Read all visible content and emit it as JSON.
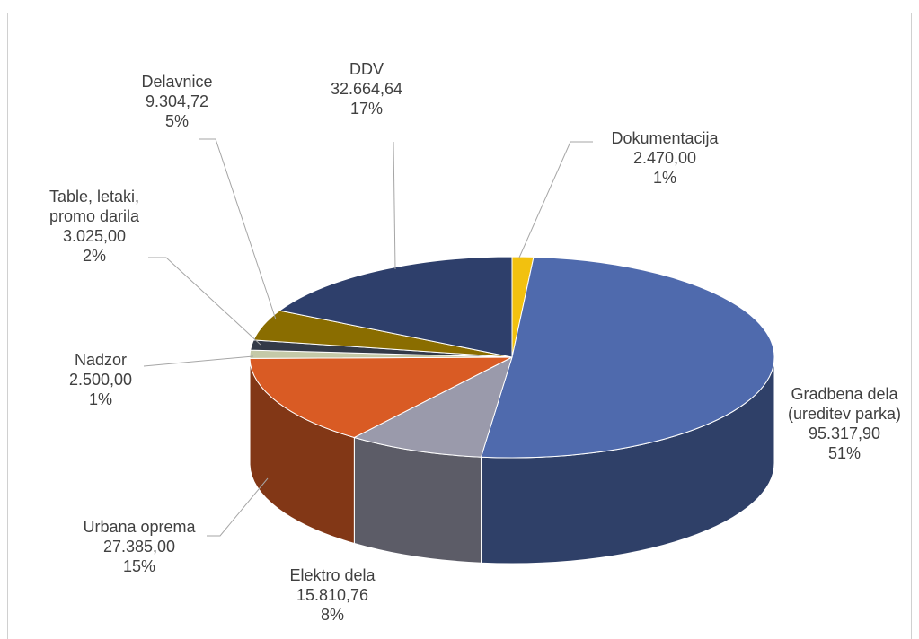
{
  "chart_data": {
    "type": "pie3d",
    "categories": [
      "Dokumentacija",
      "Gradbena dela (ureditev parka)",
      "Elektro dela",
      "Urbana oprema",
      "Nadzor",
      "Table, letaki, promo darila",
      "Delavnice",
      "DDV"
    ],
    "values": [
      2470.0,
      95317.9,
      15810.76,
      27385.0,
      2500.0,
      3025.0,
      9304.72,
      32664.64
    ],
    "value_labels": [
      "2.470,00",
      "95.317,90",
      "15.810,76",
      "27.385,00",
      "2.500,00",
      "3.025,00",
      "9.304,72",
      "32.664,64"
    ],
    "percents": [
      1,
      51,
      8,
      15,
      1,
      2,
      5,
      17
    ],
    "percent_labels": [
      "1%",
      "51%",
      "8%",
      "15%",
      "1%",
      "2%",
      "5%",
      "17%"
    ],
    "colors": [
      "#f2c10f",
      "#4f6aad",
      "#9a9aab",
      "#d95b24",
      "#c4c9a8",
      "#333a48",
      "#8a6d00",
      "#2e3f6b"
    ]
  }
}
